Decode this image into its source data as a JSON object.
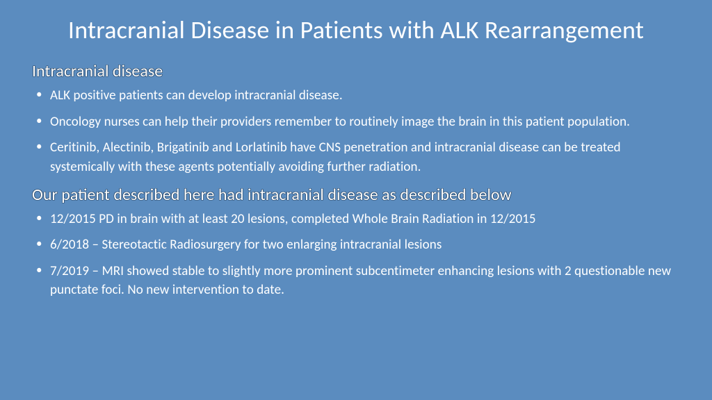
{
  "colors": {
    "background": "#5b8cbf",
    "text": "#ffffff",
    "heading_outline": "#1f3d5c"
  },
  "typography": {
    "title_fontsize": 36,
    "heading_fontsize": 24,
    "body_fontsize": 19,
    "font_family": "Segoe UI Light"
  },
  "title": "Intracranial Disease in Patients with ALK Rearrangement",
  "sections": [
    {
      "heading": "Intracranial disease",
      "bullets": [
        "ALK positive patients can develop intracranial disease.",
        "Oncology nurses can help their providers remember to routinely image the brain in this patient population.",
        "Ceritinib, Alectinib, Brigatinib and Lorlatinib have CNS penetration and intracranial disease can be treated systemically with these agents potentially avoiding further radiation."
      ]
    },
    {
      "heading": "Our patient described here had intracranial disease as described below",
      "bullets": [
        "12/2015 PD in brain with at least 20 lesions, completed Whole Brain Radiation in 12/2015",
        "6/2018 – Stereotactic Radiosurgery for two enlarging intracranial lesions",
        "7/2019 – MRI showed stable to slightly more prominent subcentimeter enhancing lesions with 2 questionable new punctate foci. No new intervention to date."
      ]
    }
  ]
}
